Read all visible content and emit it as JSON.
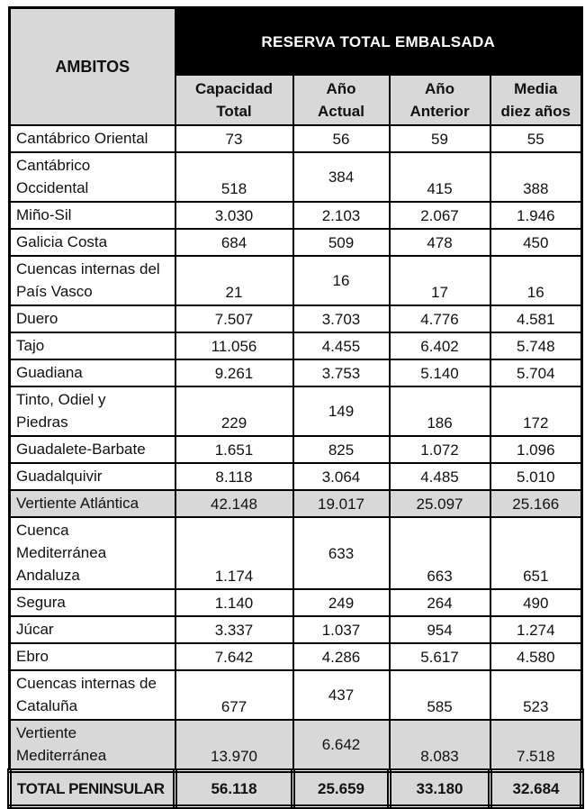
{
  "table": {
    "row_header": "AMBITOS",
    "title": "RESERVA TOTAL EMBALSADA",
    "columns": [
      "Capacidad\nTotal",
      "Año\nActual",
      "Año\nAnterior",
      "Media\ndiez años"
    ],
    "rows": [
      {
        "label": "Cantábrico Oriental",
        "values": [
          "73",
          "56",
          "59",
          "55"
        ],
        "kind": "data"
      },
      {
        "label": "Cantábrico\nOccidental",
        "values": [
          "518",
          "384",
          "415",
          "388"
        ],
        "kind": "data"
      },
      {
        "label": "Miño-Sil",
        "values": [
          "3.030",
          "2.103",
          "2.067",
          "1.946"
        ],
        "kind": "data"
      },
      {
        "label": "Galicia Costa",
        "values": [
          "684",
          "509",
          "478",
          "450"
        ],
        "kind": "data"
      },
      {
        "label": "Cuencas internas del\nPaís Vasco",
        "values": [
          "21",
          "16",
          "17",
          "16"
        ],
        "kind": "data"
      },
      {
        "label": "Duero",
        "values": [
          "7.507",
          "3.703",
          "4.776",
          "4.581"
        ],
        "kind": "data"
      },
      {
        "label": "Tajo",
        "values": [
          "11.056",
          "4.455",
          "6.402",
          "5.748"
        ],
        "kind": "data"
      },
      {
        "label": "Guadiana",
        "values": [
          "9.261",
          "3.753",
          "5.140",
          "5.704"
        ],
        "kind": "data"
      },
      {
        "label": "Tinto, Odiel y\nPiedras",
        "values": [
          "229",
          "149",
          "186",
          "172"
        ],
        "kind": "data"
      },
      {
        "label": "Guadalete-Barbate",
        "values": [
          "1.651",
          "825",
          "1.072",
          "1.096"
        ],
        "kind": "data"
      },
      {
        "label": "Guadalquivir",
        "values": [
          "8.118",
          "3.064",
          "4.485",
          "5.010"
        ],
        "kind": "data"
      },
      {
        "label": "Vertiente Atlántica",
        "values": [
          "42.148",
          "19.017",
          "25.097",
          "25.166"
        ],
        "kind": "subtotal"
      },
      {
        "label": "Cuenca\nMediterránea\nAndaluza",
        "values": [
          "1.174",
          "633",
          "663",
          "651"
        ],
        "kind": "data"
      },
      {
        "label": "Segura",
        "values": [
          "1.140",
          "249",
          "264",
          "490"
        ],
        "kind": "data"
      },
      {
        "label": "Júcar",
        "values": [
          "3.337",
          "1.037",
          "954",
          "1.274"
        ],
        "kind": "data"
      },
      {
        "label": "Ebro",
        "values": [
          "7.642",
          "4.286",
          "5.617",
          "4.580"
        ],
        "kind": "data"
      },
      {
        "label": "Cuencas internas de\nCataluña",
        "values": [
          "677",
          "437",
          "585",
          "523"
        ],
        "kind": "data"
      },
      {
        "label": "Vertiente\nMediterránea",
        "values": [
          "13.970",
          "6.642",
          "8.083",
          "7.518"
        ],
        "kind": "subtotal"
      },
      {
        "label": "TOTAL PENINSULAR",
        "values": [
          "56.118",
          "25.659",
          "33.180",
          "32.684"
        ],
        "kind": "total"
      }
    ],
    "colors": {
      "band_background": "#000000",
      "band_text": "#ffffff",
      "header_background": "#d8d8d8",
      "subtotal_background": "#d8d8d8",
      "total_background": "#d8d8d8",
      "border": "#000000"
    }
  },
  "chart_data": {
    "type": "table",
    "title": "RESERVA TOTAL EMBALSADA",
    "row_header": "AMBITOS",
    "columns": [
      "Capacidad Total",
      "Año Actual",
      "Año Anterior",
      "Media diez años"
    ],
    "rows": [
      {
        "ambito": "Cantábrico Oriental",
        "capacidad_total": 73,
        "ano_actual": 56,
        "ano_anterior": 59,
        "media_diez_anos": 55,
        "kind": "data"
      },
      {
        "ambito": "Cantábrico Occidental",
        "capacidad_total": 518,
        "ano_actual": 384,
        "ano_anterior": 415,
        "media_diez_anos": 388,
        "kind": "data"
      },
      {
        "ambito": "Miño-Sil",
        "capacidad_total": 3030,
        "ano_actual": 2103,
        "ano_anterior": 2067,
        "media_diez_anos": 1946,
        "kind": "data"
      },
      {
        "ambito": "Galicia Costa",
        "capacidad_total": 684,
        "ano_actual": 509,
        "ano_anterior": 478,
        "media_diez_anos": 450,
        "kind": "data"
      },
      {
        "ambito": "Cuencas internas del País Vasco",
        "capacidad_total": 21,
        "ano_actual": 16,
        "ano_anterior": 17,
        "media_diez_anos": 16,
        "kind": "data"
      },
      {
        "ambito": "Duero",
        "capacidad_total": 7507,
        "ano_actual": 3703,
        "ano_anterior": 4776,
        "media_diez_anos": 4581,
        "kind": "data"
      },
      {
        "ambito": "Tajo",
        "capacidad_total": 11056,
        "ano_actual": 4455,
        "ano_anterior": 6402,
        "media_diez_anos": 5748,
        "kind": "data"
      },
      {
        "ambito": "Guadiana",
        "capacidad_total": 9261,
        "ano_actual": 3753,
        "ano_anterior": 5140,
        "media_diez_anos": 5704,
        "kind": "data"
      },
      {
        "ambito": "Tinto, Odiel y Piedras",
        "capacidad_total": 229,
        "ano_actual": 149,
        "ano_anterior": 186,
        "media_diez_anos": 172,
        "kind": "data"
      },
      {
        "ambito": "Guadalete-Barbate",
        "capacidad_total": 1651,
        "ano_actual": 825,
        "ano_anterior": 1072,
        "media_diez_anos": 1096,
        "kind": "data"
      },
      {
        "ambito": "Guadalquivir",
        "capacidad_total": 8118,
        "ano_actual": 3064,
        "ano_anterior": 4485,
        "media_diez_anos": 5010,
        "kind": "data"
      },
      {
        "ambito": "Vertiente Atlántica",
        "capacidad_total": 42148,
        "ano_actual": 19017,
        "ano_anterior": 25097,
        "media_diez_anos": 25166,
        "kind": "subtotal"
      },
      {
        "ambito": "Cuenca Mediterránea Andaluza",
        "capacidad_total": 1174,
        "ano_actual": 633,
        "ano_anterior": 663,
        "media_diez_anos": 651,
        "kind": "data"
      },
      {
        "ambito": "Segura",
        "capacidad_total": 1140,
        "ano_actual": 249,
        "ano_anterior": 264,
        "media_diez_anos": 490,
        "kind": "data"
      },
      {
        "ambito": "Júcar",
        "capacidad_total": 3337,
        "ano_actual": 1037,
        "ano_anterior": 954,
        "media_diez_anos": 1274,
        "kind": "data"
      },
      {
        "ambito": "Ebro",
        "capacidad_total": 7642,
        "ano_actual": 4286,
        "ano_anterior": 5617,
        "media_diez_anos": 4580,
        "kind": "data"
      },
      {
        "ambito": "Cuencas internas de Cataluña",
        "capacidad_total": 677,
        "ano_actual": 437,
        "ano_anterior": 585,
        "media_diez_anos": 523,
        "kind": "data"
      },
      {
        "ambito": "Vertiente Mediterránea",
        "capacidad_total": 13970,
        "ano_actual": 6642,
        "ano_anterior": 8083,
        "media_diez_anos": 7518,
        "kind": "subtotal"
      },
      {
        "ambito": "TOTAL PENINSULAR",
        "capacidad_total": 56118,
        "ano_actual": 25659,
        "ano_anterior": 33180,
        "media_diez_anos": 32684,
        "kind": "total"
      }
    ]
  }
}
